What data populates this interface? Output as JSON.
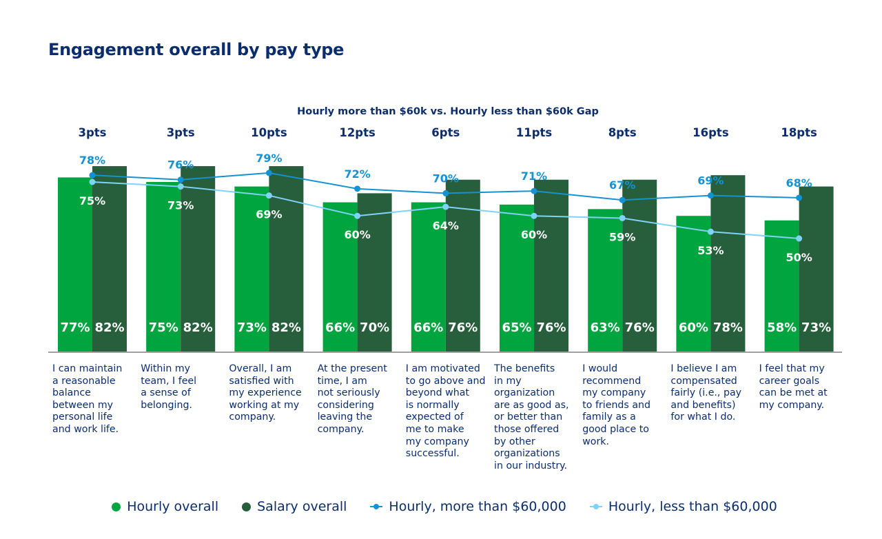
{
  "chart_data": {
    "type": "bar",
    "title": "Engagement overall by pay type",
    "subtitle": "Hourly more than $60k vs. Hourly less than $60k Gap",
    "ylim": [
      0,
      100
    ],
    "grid": false,
    "legend_position": "bottom",
    "categories": [
      "I can maintain\na reasonable\nbalance\nbetween my\npersonal life\nand work life.",
      "Within my\nteam, I feel\na sense of\nbelonging.",
      "Overall, I am\nsatisfied with\nmy experience\nworking at my\ncompany.",
      "At the present\ntime, I am\nnot seriously\nconsidering\nleaving the\ncompany.",
      "I am motivated\nto go above and\nbeyond what\nis normally\nexpected of\nme to make\nmy company\nsuccessful.",
      "The benefits\nin my\norganization\nare as good as,\nor better than\nthose offered\nby other\norganizations\nin our industry.",
      "I would\nrecommend\nmy company\nto friends and\nfamily as a\ngood place to\nwork.",
      "I believe I am\ncompensated\nfairly (i.e., pay\nand benefits)\nfor what I do.",
      "I feel that my\ncareer goals\ncan be met at\nmy company."
    ],
    "gap_labels": [
      "3pts",
      "3pts",
      "10pts",
      "12pts",
      "6pts",
      "11pts",
      "8pts",
      "16pts",
      "18pts"
    ],
    "series": [
      {
        "name": "Hourly overall",
        "kind": "bar",
        "color": "#00a540",
        "values": [
          77,
          75,
          73,
          66,
          66,
          65,
          63,
          60,
          58
        ]
      },
      {
        "name": "Salary overall",
        "kind": "bar",
        "color": "#275e3b",
        "values": [
          82,
          82,
          82,
          70,
          76,
          76,
          76,
          78,
          73
        ]
      },
      {
        "name": "Hourly, more than $60,000",
        "kind": "line",
        "color": "#1592d2",
        "values": [
          78,
          76,
          79,
          72,
          70,
          71,
          67,
          69,
          68
        ]
      },
      {
        "name": "Hourly, less than $60,000",
        "kind": "line",
        "color": "#7fd3f7",
        "values": [
          75,
          73,
          69,
          60,
          64,
          60,
          59,
          53,
          50
        ]
      }
    ]
  }
}
